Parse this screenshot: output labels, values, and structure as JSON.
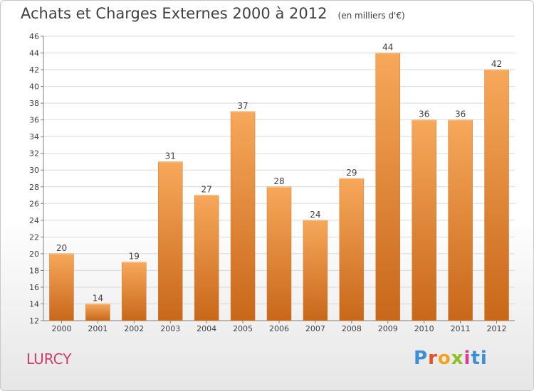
{
  "title": "Achats et Charges Externes 2000 à 2012",
  "subtitle": "(en milliers d'€)",
  "commune": "LURCY",
  "brand": "Proxiti",
  "colors": {
    "bar_top": "#f7a85a",
    "bar_bottom": "#c8671a",
    "grid": "#d9d9d9",
    "axis_text": "#404040"
  },
  "chart_data": {
    "type": "bar",
    "categories": [
      "2000",
      "2001",
      "2002",
      "2003",
      "2004",
      "2005",
      "2006",
      "2007",
      "2008",
      "2009",
      "2010",
      "2011",
      "2012"
    ],
    "values": [
      20,
      14,
      19,
      31,
      27,
      37,
      28,
      24,
      29,
      44,
      36,
      36,
      42
    ],
    "xlabel": "",
    "ylabel": "",
    "ylim": [
      12,
      46
    ],
    "yticks": [
      12,
      14,
      16,
      18,
      20,
      22,
      24,
      26,
      28,
      30,
      32,
      34,
      36,
      38,
      40,
      42,
      44,
      46
    ],
    "grid": true,
    "legend": "none"
  }
}
